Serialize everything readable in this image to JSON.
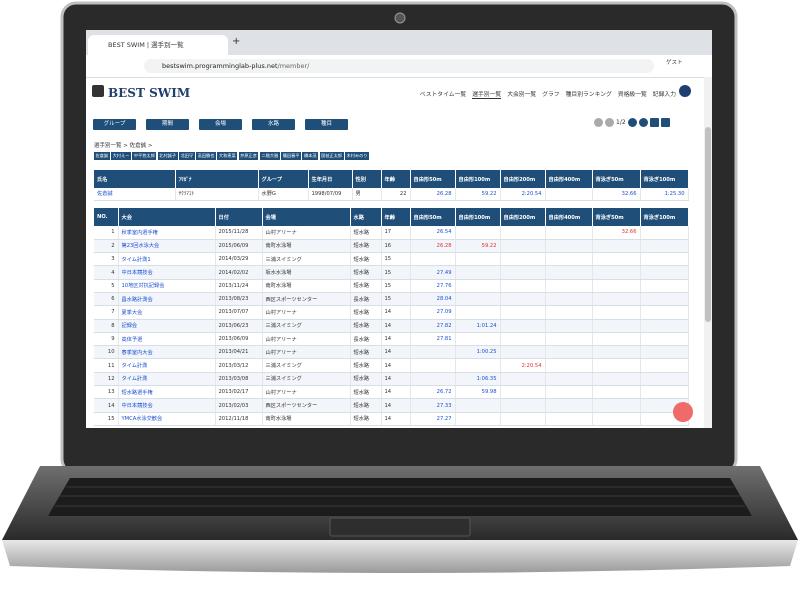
{
  "browser": {
    "tab_title": "BEST SWIM | 選手別一覧",
    "url_host": "bestswim.programminglab-plus.net",
    "url_path": "/member/",
    "profile": "ゲスト"
  },
  "header": {
    "logo": "BEST SWIM",
    "nav": [
      "ベストタイム一覧",
      "選手別一覧",
      "大会別一覧",
      "グラフ",
      "種目別ランキング",
      "資格級一覧",
      "記録入力"
    ],
    "active_nav": 1
  },
  "filters": [
    "グループ",
    "期間",
    "会場",
    "水路",
    "種目"
  ],
  "pagination": "1/2",
  "breadcrumb": "選手別一覧 > 佐倉誠 >",
  "swimmers": [
    "佐倉誠",
    "大村えー",
    "中平悠太郎",
    "北村誠子",
    "北田守",
    "高田勝也",
    "大和恵菜",
    "井原正彦",
    "二階大雅",
    "篠田春平",
    "橋本茂",
    "国枝正太郎",
    "木村みのり"
  ],
  "profile": {
    "columns": [
      "氏名",
      "ﾌﾘｶﾞﾅ",
      "グループ",
      "生年月日",
      "性別",
      "年齢",
      "自由形50m",
      "自由形100m",
      "自由形200m",
      "自由形400m",
      "背泳ぎ50m",
      "背泳ぎ100m"
    ],
    "row": [
      "佐倉誠",
      "ｻｸﾗﾏｺﾄ",
      "水野G",
      "1998/07/09",
      "男",
      22,
      "26.28",
      "59.22",
      "2:20.54",
      null,
      "32.66",
      "1:25.30"
    ]
  },
  "results": {
    "columns": [
      "NO.",
      "大会",
      "日付",
      "会場",
      "水路",
      "年齢",
      "自由形50m",
      "自由形100m",
      "自由形200m",
      "自由形400m",
      "背泳ぎ50m",
      "背泳ぎ100m"
    ],
    "rows": [
      {
        "cells": [
          1,
          "秋季室内選手権",
          "2015/11/28",
          "山村アリーナ",
          "短水路",
          17,
          "26.54",
          null,
          null,
          null,
          "32.66",
          null
        ],
        "best": [
          10
        ]
      },
      {
        "cells": [
          2,
          "第23回水泳大会",
          "2015/06/09",
          "南町水泳場",
          "短水路",
          16,
          "26.28",
          "59.22",
          null,
          null,
          null,
          null
        ],
        "best": [
          6,
          7
        ]
      },
      {
        "cells": [
          3,
          "タイム計測1",
          "2014/03/29",
          "三浦スイミング",
          "短水路",
          15,
          null,
          null,
          null,
          null,
          null,
          null
        ],
        "best": []
      },
      {
        "cells": [
          4,
          "中日本競技会",
          "2014/02/02",
          "坂水水泳場",
          "短水路",
          15,
          "27.49",
          null,
          null,
          null,
          null,
          null
        ],
        "best": []
      },
      {
        "cells": [
          5,
          "10地区対抗記録会",
          "2013/11/24",
          "南町水泳場",
          "短水路",
          15,
          "27.76",
          null,
          null,
          null,
          null,
          null
        ],
        "best": []
      },
      {
        "cells": [
          6,
          "昌水路計測会",
          "2013/08/23",
          "西区スポーツセンター",
          "長水路",
          15,
          "28.04",
          null,
          null,
          null,
          null,
          null
        ],
        "best": []
      },
      {
        "cells": [
          7,
          "夏季大会",
          "2013/07/07",
          "山村アリーナ",
          "短水路",
          14,
          "27.09",
          null,
          null,
          null,
          null,
          null
        ],
        "best": []
      },
      {
        "cells": [
          8,
          "記録会",
          "2013/06/23",
          "三浦スイミング",
          "短水路",
          14,
          "27.82",
          "1:01.24",
          null,
          null,
          null,
          null
        ],
        "best": []
      },
      {
        "cells": [
          9,
          "高体予選",
          "2013/06/09",
          "山村アリーナ",
          "長水路",
          14,
          "27.81",
          null,
          null,
          null,
          null,
          null
        ],
        "best": []
      },
      {
        "cells": [
          10,
          "春季室内大会",
          "2013/04/21",
          "山村アリーナ",
          "短水路",
          14,
          null,
          "1:00.25",
          null,
          null,
          null,
          null
        ],
        "best": []
      },
      {
        "cells": [
          11,
          "タイム計測",
          "2013/03/12",
          "三浦スイミング",
          "短水路",
          14,
          null,
          null,
          "2:20.54",
          null,
          null,
          null
        ],
        "best": [
          8
        ]
      },
      {
        "cells": [
          12,
          "タイム計測",
          "2013/03/08",
          "三浦スイミング",
          "短水路",
          14,
          null,
          "1:06.35",
          null,
          null,
          null,
          null
        ],
        "best": []
      },
      {
        "cells": [
          13,
          "短水路選手権",
          "2013/02/17",
          "山村アリーナ",
          "短水路",
          14,
          "26.72",
          "59.98",
          null,
          null,
          null,
          null
        ],
        "best": []
      },
      {
        "cells": [
          14,
          "中日本競技会",
          "2013/02/03",
          "西区スポーツセンター",
          "短水路",
          14,
          "27.33",
          null,
          null,
          null,
          null,
          null
        ],
        "best": []
      },
      {
        "cells": [
          15,
          "YMCA水泳交歓会",
          "2012/11/18",
          "南町水泳場",
          "短水路",
          14,
          "27.27",
          null,
          null,
          null,
          null,
          null
        ],
        "best": []
      }
    ]
  }
}
